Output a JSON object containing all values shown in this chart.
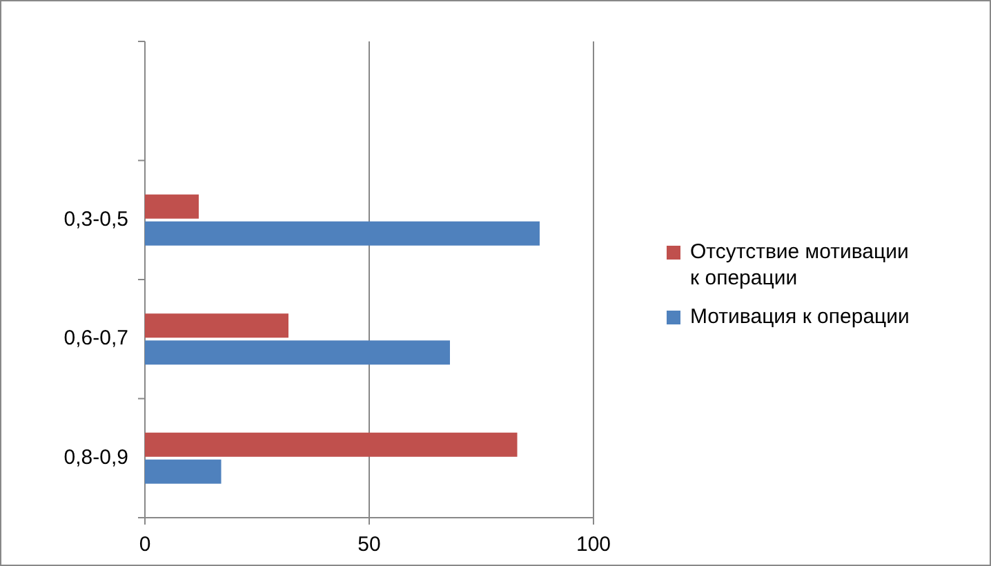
{
  "chart_data": {
    "type": "bar",
    "orientation": "horizontal",
    "categories": [
      null,
      "0,3-0,5",
      "0,6-0,7",
      "0,8-0,9"
    ],
    "series": [
      {
        "name": "Отсутствие мотивации к операции",
        "color": "#c0504d",
        "values": [
          null,
          12,
          32,
          83
        ]
      },
      {
        "name": "Мотивация к операции",
        "color": "#4f81bd",
        "values": [
          null,
          88,
          68,
          17
        ]
      }
    ],
    "xlim": [
      0,
      100
    ],
    "xticks": [
      0,
      50,
      100
    ],
    "grid": "x",
    "legend": "right"
  }
}
